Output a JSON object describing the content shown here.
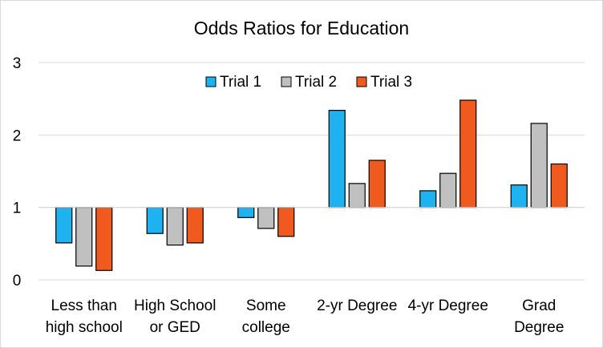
{
  "chart_data": {
    "type": "bar",
    "title": "Odds Ratios for Education",
    "xlabel": "",
    "ylabel": "",
    "ylim": [
      0,
      3
    ],
    "yticks": [
      0,
      1,
      2,
      3
    ],
    "baseline": 1,
    "grid": true,
    "legend_position": "top",
    "categories": [
      [
        "Less than",
        "high school"
      ],
      [
        "High School",
        "or GED"
      ],
      [
        "Some",
        "college"
      ],
      [
        "2-yr Degree"
      ],
      [
        "4-yr Degree"
      ],
      [
        "Grad",
        "Degree"
      ]
    ],
    "series": [
      {
        "name": "Trial 1",
        "color": "#1fb2f0",
        "values": [
          0.51,
          0.64,
          0.86,
          2.34,
          1.23,
          1.31
        ]
      },
      {
        "name": "Trial 2",
        "color": "#c0c0c0",
        "values": [
          0.19,
          0.48,
          0.71,
          1.33,
          1.47,
          2.16
        ]
      },
      {
        "name": "Trial 3",
        "color": "#f05a1e",
        "values": [
          0.13,
          0.51,
          0.6,
          1.65,
          2.48,
          1.6
        ]
      }
    ]
  }
}
